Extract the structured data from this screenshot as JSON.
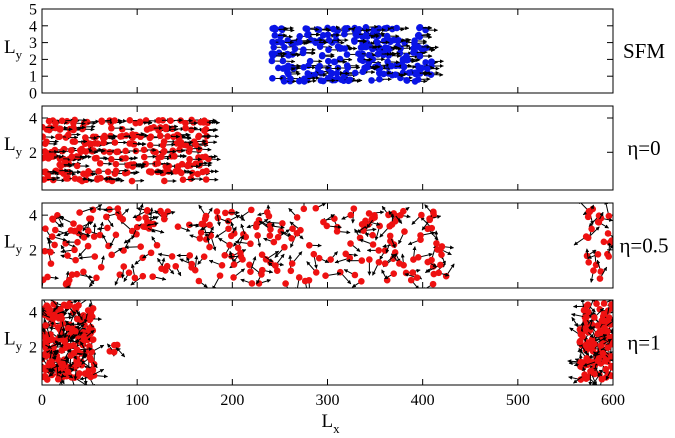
{
  "chart_data": {
    "type": "scatter",
    "x_axis": {
      "label": "L",
      "label_sub": "x",
      "range": [
        0,
        600
      ],
      "ticks": [
        0,
        100,
        200,
        300,
        400,
        500,
        600
      ]
    },
    "panels": [
      {
        "name": "SFM",
        "label_text": "SFM",
        "ylabel": "L",
        "ylabel_sub": "y",
        "ylim": [
          0,
          5
        ],
        "yticks": [
          0,
          1,
          2,
          3,
          4,
          5
        ],
        "color": "#0a14e6",
        "clusters": [
          {
            "x_range": [
              240,
              410
            ],
            "y_range": [
              0.6,
              4.0
            ],
            "count": 260,
            "arrows": "aligned"
          }
        ]
      },
      {
        "name": "eta=0",
        "label_text": "η=0",
        "ylabel": "L",
        "ylabel_sub": "y",
        "ylim": [
          -0.2,
          4.7
        ],
        "yticks": [
          2,
          4
        ],
        "color": "#ee1111",
        "clusters": [
          {
            "x_range": [
              0,
              175
            ],
            "y_range": [
              0.2,
              4.0
            ],
            "count": 260,
            "arrows": "aligned"
          }
        ]
      },
      {
        "name": "eta=0.5",
        "label_text": "η=0.5",
        "ylabel": "L",
        "ylabel_sub": "y",
        "ylim": [
          -0.2,
          4.7
        ],
        "yticks": [
          2,
          4
        ],
        "color": "#ee1111",
        "clusters": [
          {
            "x_range": [
              0,
              430
            ],
            "y_range": [
              0.0,
              4.4
            ],
            "count": 250,
            "arrows": "random"
          },
          {
            "x_range": [
              570,
              600
            ],
            "y_range": [
              0.2,
              4.4
            ],
            "count": 25,
            "arrows": "random"
          }
        ]
      },
      {
        "name": "eta=1",
        "label_text": "η=1",
        "ylabel": "L",
        "ylabel_sub": "y",
        "ylim": [
          -0.2,
          4.7
        ],
        "yticks": [
          2,
          4
        ],
        "color": "#ee1111",
        "clusters": [
          {
            "x_range": [
              0,
              55
            ],
            "y_range": [
              0.1,
              4.5
            ],
            "count": 190,
            "arrows": "random"
          },
          {
            "x_range": [
              70,
              80
            ],
            "y_range": [
              1.6,
              2.2
            ],
            "count": 4,
            "arrows": "random"
          },
          {
            "x_range": [
              565,
              600
            ],
            "y_range": [
              0.1,
              4.5
            ],
            "count": 120,
            "arrows": "random"
          }
        ]
      }
    ]
  }
}
